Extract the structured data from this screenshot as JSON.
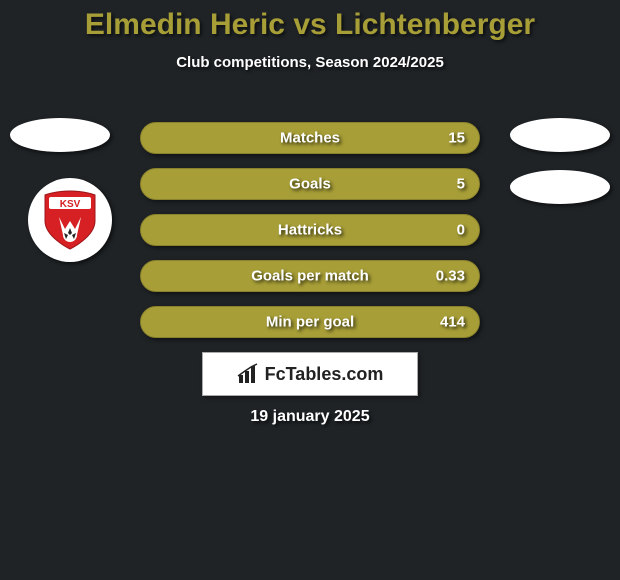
{
  "background_color": "#1f2326",
  "title": {
    "text": "Elmedin Heric vs Lichtenberger",
    "color": "#a79e37",
    "fontsize": 30,
    "fontweight": 900
  },
  "subtitle": {
    "text": "Club competitions, Season 2024/2025",
    "color": "#ffffff",
    "fontsize": 15
  },
  "left_ellipse_top": {
    "color": "#ffffff"
  },
  "right_ellipse_1": {
    "color": "#ffffff"
  },
  "right_ellipse_2": {
    "color": "#ffffff"
  },
  "club_badge": {
    "name": "ksv-badge",
    "outer_color": "#ffffff",
    "shield_red": "#d62023",
    "shield_white": "#ffffff",
    "text": "KSV",
    "text_color": "#d62023"
  },
  "stats": {
    "bar_fill": "#a79e37",
    "bar_border": "#8a822d",
    "label_color": "#ffffff",
    "value_color": "#ffffff",
    "label_fontsize": 15,
    "bars": [
      {
        "label": "Matches",
        "value_right": "15"
      },
      {
        "label": "Goals",
        "value_right": "5"
      },
      {
        "label": "Hattricks",
        "value_right": "0"
      },
      {
        "label": "Goals per match",
        "value_right": "0.33"
      },
      {
        "label": "Min per goal",
        "value_right": "414"
      }
    ]
  },
  "logo": {
    "box_bg": "#ffffff",
    "box_border": "#aaaaaa",
    "icon_name": "bar-chart-icon",
    "icon_color": "#222222",
    "text": "FcTables.com",
    "text_color": "#222222"
  },
  "date": {
    "text": "19 january 2025",
    "color": "#ffffff",
    "fontsize": 16
  }
}
